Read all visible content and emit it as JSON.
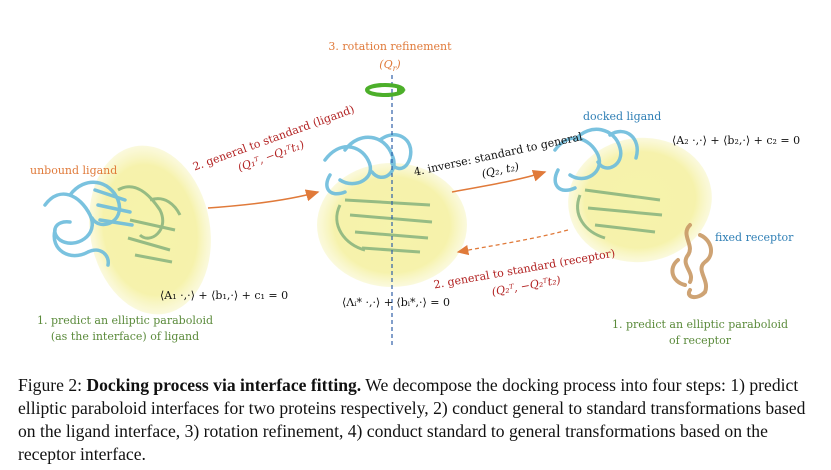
{
  "colors": {
    "orange": "#e07a3a",
    "red": "#b22222",
    "green": "#5a8a3a",
    "blue": "#2f7fb5",
    "paraboloid": "#f3f0a0",
    "ligand": "#6cbcdc",
    "receptor": "#d9b48a",
    "ring": "#4caf2a"
  },
  "figure": {
    "step3_title": "3. rotation refinement",
    "step3_matrix": "(Q",
    "step3_matrix_sub": "r",
    "step3_matrix_close": ")",
    "unbound_ligand": "unbound ligand",
    "step2_ligand_title": "2. general to standard (ligand)",
    "step2_ligand_math": "(Q₁ᵀ, −Q₁ᵀt₁)",
    "step4_title": "4. inverse: standard to general",
    "step4_math": "(Q₂, t₂)",
    "docked_ligand": "docked ligand",
    "eq_docked": "⟨A₂ ·,·⟩ + ⟨b₂,·⟩ + c₂ = 0",
    "fixed_receptor": "fixed receptor",
    "eq_ligand": "⟨A₁ ·,·⟩ + ⟨b₁,·⟩ + c₁ = 0",
    "eq_standard": "⟨Λᵢ* ·,·⟩ + ⟨bᵢ*,·⟩ = 0",
    "step2_receptor_title": "2. general to standard (receptor)",
    "step2_receptor_math": "(Q₂ᵀ, −Q₂ᵀt₂)",
    "step1_ligand_line1": "1. predict an elliptic paraboloid",
    "step1_ligand_line2": "(as the interface) of ligand",
    "step1_receptor_line1": "1. predict an elliptic paraboloid",
    "step1_receptor_line2": "of receptor"
  },
  "caption": {
    "label": "Figure 2: ",
    "bold": "Docking process via interface fitting.",
    "body": " We decompose the docking process into four steps: 1) predict elliptic paraboloid interfaces for two proteins respectively, 2) conduct general to standard transformations based on the ligand interface, 3) rotation refinement, 4) conduct standard to general transformations based on the receptor interface."
  }
}
